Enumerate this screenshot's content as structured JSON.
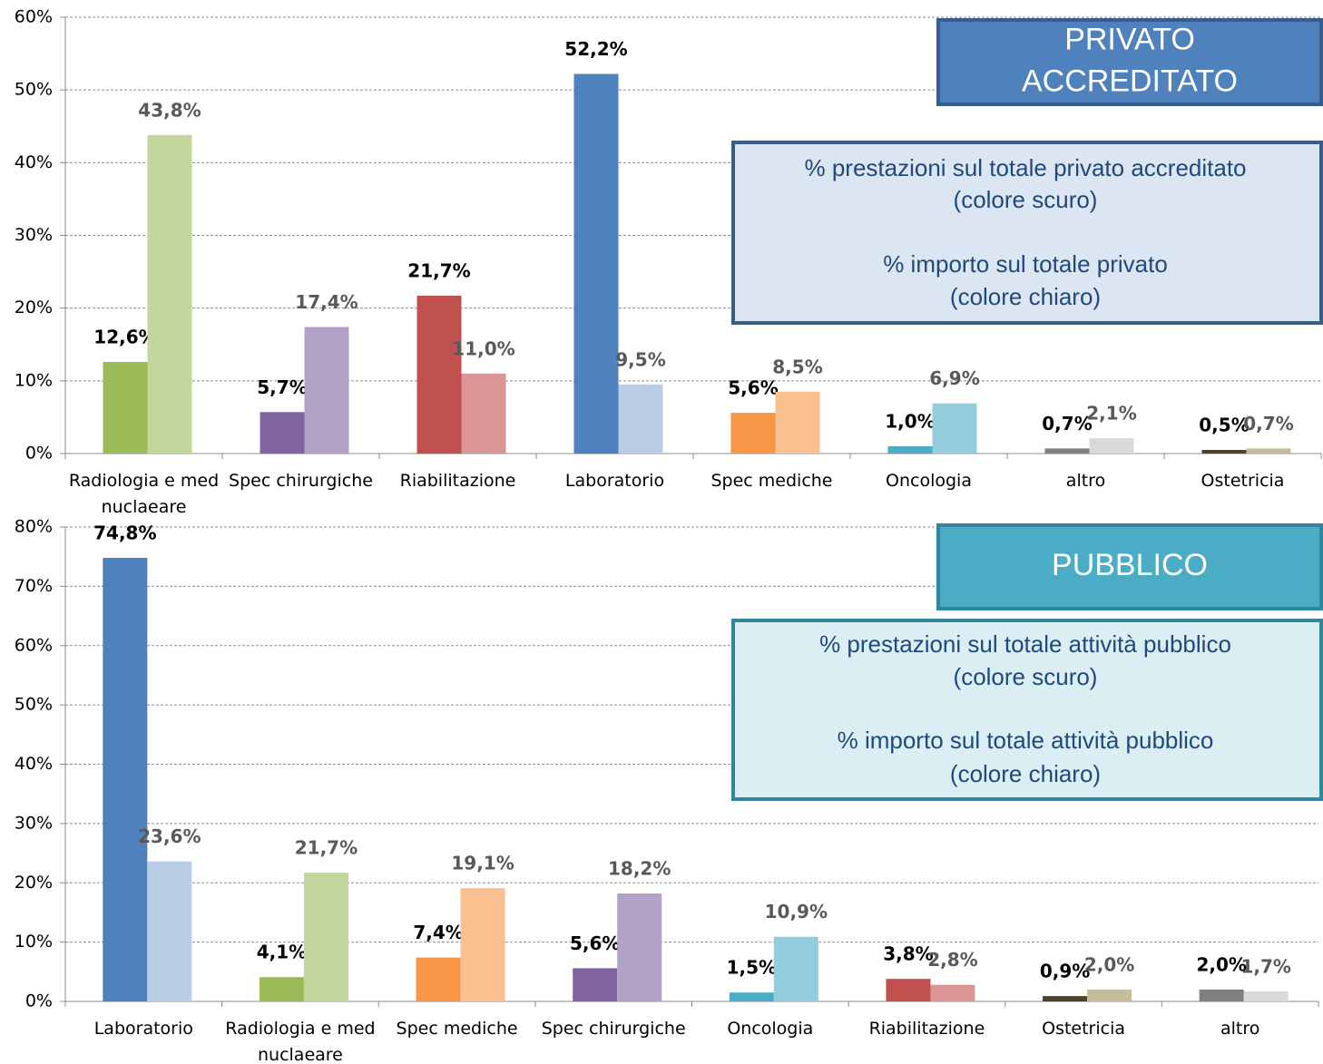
{
  "chart_data": [
    {
      "type": "bar",
      "categories": [
        "Radiologia e med nuclaeare",
        "Spec chirurgiche",
        "Riabilitazione",
        "Laboratorio",
        "Spec mediche",
        "Oncologia",
        "altro",
        "Ostetricia"
      ],
      "series": [
        {
          "values": [
            12.6,
            5.7,
            21.7,
            52.2,
            5.6,
            1.0,
            0.7,
            0.5
          ],
          "value_labels": [
            "12,6%",
            "5,7%",
            "21,7%",
            "52,2%",
            "5,6%",
            "1,0%",
            "0,7%",
            "0,5%"
          ],
          "colors": [
            "#9bbb59",
            "#8064a2",
            "#c0504d",
            "#4f81bd",
            "#f79646",
            "#4bacc6",
            "#7f7f7f",
            "#4a452a"
          ]
        },
        {
          "values": [
            43.8,
            17.4,
            11.0,
            9.5,
            8.5,
            6.9,
            2.1,
            0.7
          ],
          "value_labels": [
            "43,8%",
            "17,4%",
            "11,0%",
            "9,5%",
            "8,5%",
            "6,9%",
            "2,1%",
            "0,7%"
          ],
          "colors": [
            "#c3d69b",
            "#b3a2c7",
            "#d99694",
            "#b9cde5",
            "#fac090",
            "#93cddd",
            "#d9d9d9",
            "#c4bd97"
          ]
        }
      ],
      "ylim": [
        0,
        60
      ],
      "yticks": [
        {
          "value": 0,
          "label": "0%"
        },
        {
          "value": 10,
          "label": "10%"
        },
        {
          "value": 20,
          "label": "20%"
        },
        {
          "value": 30,
          "label": "30%"
        },
        {
          "value": 40,
          "label": "40%"
        },
        {
          "value": 50,
          "label": "50%"
        },
        {
          "value": 60,
          "label": "60%"
        }
      ],
      "grid": true,
      "badge": [
        "PRIVATO",
        "ACCREDITATO"
      ],
      "notes": [
        "% prestazioni sul totale privato accreditato",
        "(colore scuro)",
        "% importo sul totale privato",
        "(colore chiaro)"
      ]
    },
    {
      "type": "bar",
      "categories": [
        "Laboratorio",
        "Radiologia e med nuclaeare",
        "Spec mediche",
        "Spec chirurgiche",
        "Oncologia",
        "Riabilitazione",
        "Ostetricia",
        "altro"
      ],
      "series": [
        {
          "values": [
            74.8,
            4.1,
            7.4,
            5.6,
            1.5,
            3.8,
            0.9,
            2.0
          ],
          "value_labels": [
            "74,8%",
            "4,1%",
            "7,4%",
            "5,6%",
            "1,5%",
            "3,8%",
            "0,9%",
            "2,0%"
          ],
          "colors": [
            "#4f81bd",
            "#9bbb59",
            "#f79646",
            "#8064a2",
            "#4bacc6",
            "#c0504d",
            "#4a452a",
            "#7f7f7f"
          ]
        },
        {
          "values": [
            23.6,
            21.7,
            19.1,
            18.2,
            10.9,
            2.8,
            2.0,
            1.7
          ],
          "value_labels": [
            "23,6%",
            "21,7%",
            "19,1%",
            "18,2%",
            "10,9%",
            "2,8%",
            "2,0%",
            "1,7%"
          ],
          "colors": [
            "#b9cde5",
            "#c3d69b",
            "#fac090",
            "#b3a2c7",
            "#93cddd",
            "#d99694",
            "#c4bd97",
            "#d9d9d9"
          ]
        }
      ],
      "ylim": [
        0,
        80
      ],
      "yticks": [
        {
          "value": 0,
          "label": "0%"
        },
        {
          "value": 10,
          "label": "10%"
        },
        {
          "value": 20,
          "label": "20%"
        },
        {
          "value": 30,
          "label": "30%"
        },
        {
          "value": 40,
          "label": "40%"
        },
        {
          "value": 50,
          "label": "50%"
        },
        {
          "value": 60,
          "label": "60%"
        },
        {
          "value": 70,
          "label": "70%"
        },
        {
          "value": 80,
          "label": "80%"
        }
      ],
      "grid": true,
      "badge": [
        "PUBBLICO"
      ],
      "notes": [
        "% prestazioni sul totale attività pubblico",
        "(colore scuro)",
        "% importo sul totale attività pubblico",
        "(colore chiaro)"
      ]
    }
  ]
}
